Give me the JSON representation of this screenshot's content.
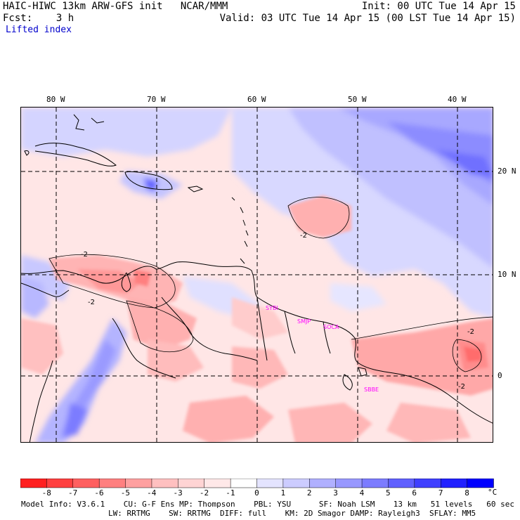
{
  "header": {
    "model": "HAIC-HIWC 13km ARW-GFS init",
    "org": "NCAR/MMM",
    "init": "Init: 00 UTC Tue 14 Apr 15",
    "fcst_label": "Fcst:",
    "fcst_value": "3 h",
    "valid": "Valid: 03 UTC Tue 14 Apr 15 (00 LST Tue 14 Apr 15)",
    "field": "Lifted index"
  },
  "axes": {
    "lon_labels": [
      "80 W",
      "70 W",
      "60 W",
      "50 W",
      "40 W"
    ],
    "lat_labels": [
      "20 N",
      "10 N",
      "0"
    ]
  },
  "stations": [
    "SYBI",
    "SMJP",
    "SOCA",
    "SBBE"
  ],
  "contour_labels": [
    "-2",
    "-2",
    "-2",
    "-2",
    "-2"
  ],
  "colorbar": {
    "labels": [
      "-8",
      "-7",
      "-6",
      "-5",
      "-4",
      "-3",
      "-2",
      "-1",
      "0",
      "1",
      "2",
      "3",
      "4",
      "5",
      "6",
      "7",
      "8"
    ],
    "unit": "°C",
    "colors": [
      "#ff2020",
      "#ff4040",
      "#ff6060",
      "#ff8080",
      "#ffa0a0",
      "#ffc0c0",
      "#ffd4d4",
      "#ffe8e8",
      "#ffffff",
      "#e4e4ff",
      "#ccccff",
      "#b0b0ff",
      "#9898ff",
      "#7c7cff",
      "#6060ff",
      "#4040ff",
      "#2020ff",
      "#0000ff"
    ]
  },
  "footer": {
    "line1": "Model Info: V3.6.1    CU: G-F Ens MP: Thompson    PBL: YSU      SF: Noah LSM    13 km   51 levels   60 sec",
    "line2": "LW: RRTMG    SW: RRTMG  DIFF: full    KM: 2D Smagor DAMP: Rayleigh3  SFLAY: MM5"
  }
}
